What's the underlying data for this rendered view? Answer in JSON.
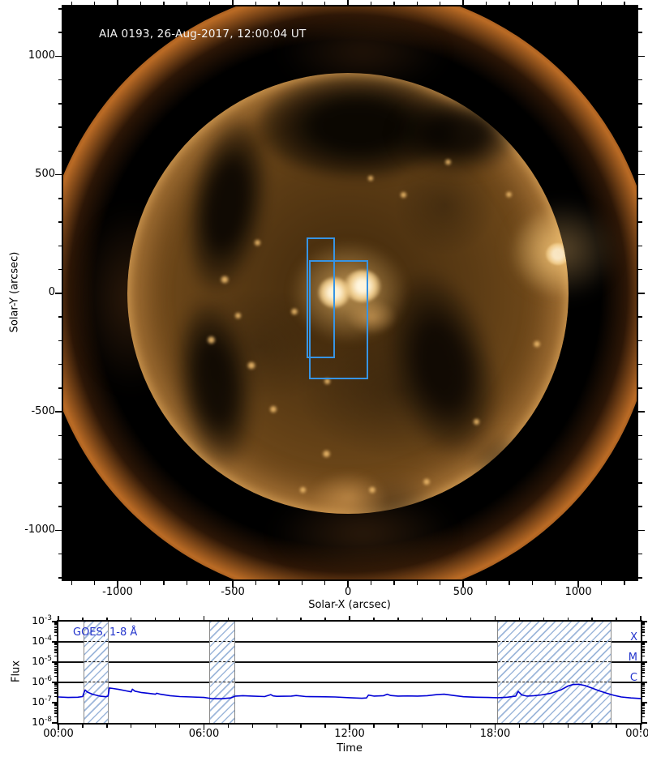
{
  "colors": {
    "curve_blue": "#0000d6",
    "label_blue": "#2233cc",
    "roi_blue": "#3794e4",
    "hatch_blue": "#8caad4",
    "hatch_border_gray": "#8a8a8a",
    "threshold_line": "#111111",
    "image_background": "#000000"
  },
  "chart_data": [
    {
      "type": "image",
      "description": "Full-disk solar EUV image with two region-of-interest boxes",
      "title": "AIA 0193, 26-Aug-2017, 12:00:04 UT",
      "xlabel": "Solar-X (arcsec)",
      "ylabel": "Solar-Y (arcsec)",
      "xlim": [
        -1236,
        1253
      ],
      "ylim": [
        -1207,
        1210
      ],
      "xticks": [
        -1000,
        -500,
        0,
        500,
        1000
      ],
      "yticks": [
        1000,
        500,
        0,
        -500,
        -1000
      ],
      "minor_tick_step_arcsec": 100,
      "annotation_boxes_arcsec": [
        {
          "x1": -180,
          "x2": -56,
          "y1": -274,
          "y2": 236
        },
        {
          "x1": -169,
          "x2": 88,
          "y1": -362,
          "y2": 140
        }
      ]
    },
    {
      "type": "line",
      "series_label": "GOES, 1-8 Å",
      "xlabel": "Time",
      "ylabel": "Flux",
      "xlim_hours": [
        0,
        24
      ],
      "xtick_hours": [
        0,
        6,
        12,
        18,
        24
      ],
      "xtick_labels": [
        "00:00",
        "06:00",
        "12:00",
        "18:00",
        "00:00"
      ],
      "ytick_exponents": [
        -3,
        -4,
        -5,
        -6,
        -7,
        -8
      ],
      "ylim": [
        1e-08,
        0.001
      ],
      "grid": false,
      "flare_class_lines": [
        {
          "label": "X",
          "flux": 0.0001
        },
        {
          "label": "M",
          "flux": 1e-05
        },
        {
          "label": "C",
          "flux": 1e-06
        }
      ],
      "event_windows_hours": [
        [
          1.04,
          2.07
        ],
        [
          6.21,
          7.28
        ],
        [
          18.08,
          22.79
        ]
      ],
      "flux_scale": 1e-07,
      "x_hours": [
        0,
        0.4,
        0.8,
        1.0,
        1.05,
        1.1,
        1.2,
        1.4,
        1.7,
        1.95,
        2.05,
        2.1,
        2.25,
        2.5,
        2.8,
        3.0,
        3.05,
        3.15,
        3.4,
        3.7,
        4.0,
        4.05,
        4.2,
        4.6,
        5.0,
        5.5,
        6.0,
        6.3,
        6.7,
        7.1,
        7.3,
        7.6,
        8.0,
        8.5,
        8.75,
        8.85,
        9.0,
        9.6,
        9.8,
        10.2,
        10.8,
        11.4,
        12.0,
        12.5,
        12.7,
        12.78,
        13.0,
        13.4,
        13.55,
        13.7,
        14.0,
        14.4,
        14.8,
        15.2,
        15.6,
        15.9,
        16.3,
        16.7,
        17.2,
        17.7,
        18.1,
        18.5,
        18.85,
        18.95,
        19.1,
        19.3,
        19.6,
        19.9,
        20.3,
        20.7,
        21.0,
        21.2,
        21.45,
        21.7,
        22.0,
        22.3,
        22.6,
        22.9,
        23.2,
        23.6,
        24.0
      ],
      "flux_x1e7": [
        1.9,
        1.8,
        1.85,
        2.0,
        3.0,
        4.2,
        3.3,
        2.6,
        2.1,
        1.95,
        2.1,
        5.3,
        5.0,
        4.5,
        3.8,
        3.4,
        4.6,
        3.7,
        3.2,
        2.9,
        2.6,
        2.9,
        2.6,
        2.2,
        2.0,
        1.9,
        1.8,
        1.6,
        1.55,
        1.7,
        2.1,
        2.2,
        2.1,
        2.0,
        2.5,
        2.15,
        2.05,
        2.1,
        2.25,
        2.0,
        1.95,
        1.9,
        1.75,
        1.65,
        1.7,
        2.35,
        2.1,
        2.2,
        2.6,
        2.25,
        2.1,
        2.15,
        2.1,
        2.2,
        2.5,
        2.6,
        2.25,
        1.95,
        1.85,
        1.8,
        1.75,
        1.85,
        2.1,
        3.6,
        2.4,
        2.1,
        2.2,
        2.4,
        2.9,
        4.2,
        6.6,
        7.8,
        8.1,
        7.0,
        5.2,
        3.8,
        2.9,
        2.3,
        1.9,
        1.7,
        1.6
      ]
    }
  ]
}
